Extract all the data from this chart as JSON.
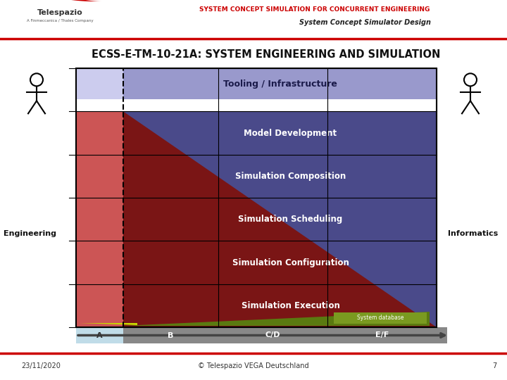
{
  "title_main": "SYSTEM CONCEPT SIMULATION FOR CONCURRENT ENGINEERING",
  "title_sub": "System Concept Simulator Design",
  "slide_title": "ECSS-E-TM-10-21A: SYSTEM ENGINEERING AND SIMULATION",
  "rows": [
    "Tooling / Infrastructure",
    "Model Development",
    "Simulation Composition",
    "Simulation Scheduling",
    "Simulation Configuration",
    "Simulation Execution"
  ],
  "phases": [
    "A",
    "B",
    "C/D",
    "E/F"
  ],
  "date": "23/11/2020",
  "copyright": "© Telespazio VEGA Deutschland",
  "page_num": "7",
  "bg_color": "#ffffff",
  "header_red": "#cc0000",
  "tooling_color": "#9999cc",
  "tooling_left_color": "#ccccee",
  "blue_bg": "#4a4a8a",
  "red_left": "#cc5555",
  "dark_red_tri": "#7a1515",
  "phase_gray": "#888888",
  "phase_A_color": "#c0dce8",
  "db_green": "#5a7a10",
  "db_label_green": "#7a9a20",
  "yg_color": "#c8d800",
  "white": "#ffffff",
  "black": "#000000",
  "left_label": "Engineering",
  "right_label": "Informatics",
  "footer_line_color": "#cc0000"
}
